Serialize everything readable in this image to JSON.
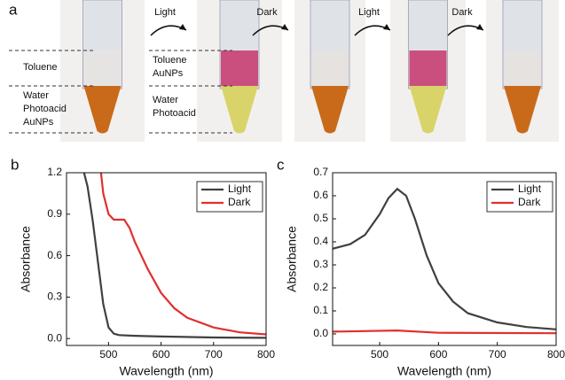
{
  "panel_a": {
    "letter": "a",
    "arrows": [
      "Light",
      "Dark",
      "Light",
      "Dark"
    ],
    "left_labels": [
      [
        "Toluene"
      ],
      [
        "Water",
        "Photoacid",
        "AuNPs"
      ]
    ],
    "mid_labels": [
      [
        "Toluene",
        "AuNPs"
      ],
      [
        "Water",
        "Photoacid"
      ]
    ]
  },
  "chart_data": [
    {
      "type": "line",
      "panel": "b",
      "xlabel": "Wavelength (nm)",
      "ylabel": "Absorbance",
      "xlim": [
        420,
        800
      ],
      "xticks": [
        500,
        600,
        700,
        800
      ],
      "ylim": [
        -0.05,
        1.2
      ],
      "yticks": [
        {
          "value": 0,
          "label": "0.0"
        },
        0.3,
        0.6,
        0.9,
        1.2
      ],
      "legend": "upper right",
      "series": [
        {
          "name": "Light",
          "color": "#404040",
          "x": [
            440,
            460,
            470,
            480,
            490,
            500,
            510,
            520,
            550,
            600,
            700,
            800
          ],
          "values": [
            1.4,
            1.1,
            0.85,
            0.55,
            0.25,
            0.08,
            0.035,
            0.025,
            0.02,
            0.015,
            0.008,
            0.005
          ]
        },
        {
          "name": "Dark",
          "color": "#e03030",
          "x": [
            480,
            490,
            500,
            510,
            520,
            530,
            540,
            550,
            575,
            600,
            625,
            650,
            700,
            750,
            800
          ],
          "values": [
            1.4,
            1.05,
            0.9,
            0.86,
            0.86,
            0.86,
            0.8,
            0.7,
            0.5,
            0.33,
            0.22,
            0.15,
            0.08,
            0.045,
            0.03
          ]
        }
      ]
    },
    {
      "type": "line",
      "panel": "c",
      "xlabel": "Wavelength (nm)",
      "ylabel": "Absorbance",
      "xlim": [
        420,
        800
      ],
      "xticks": [
        500,
        600,
        700,
        800
      ],
      "ylim": [
        -0.05,
        0.7
      ],
      "yticks": [
        {
          "value": 0,
          "label": "0.0"
        },
        0.1,
        0.2,
        0.3,
        0.4,
        0.5,
        0.6,
        0.7
      ],
      "legend": "upper right",
      "series": [
        {
          "name": "Light",
          "color": "#404040",
          "x": [
            420,
            450,
            475,
            500,
            515,
            530,
            545,
            560,
            580,
            600,
            625,
            650,
            700,
            750,
            800
          ],
          "values": [
            0.37,
            0.39,
            0.43,
            0.52,
            0.59,
            0.63,
            0.6,
            0.5,
            0.34,
            0.22,
            0.14,
            0.09,
            0.05,
            0.03,
            0.02
          ]
        },
        {
          "name": "Dark",
          "color": "#e03030",
          "x": [
            420,
            530,
            600,
            800
          ],
          "values": [
            0.01,
            0.015,
            0.005,
            0.003
          ]
        }
      ]
    }
  ]
}
